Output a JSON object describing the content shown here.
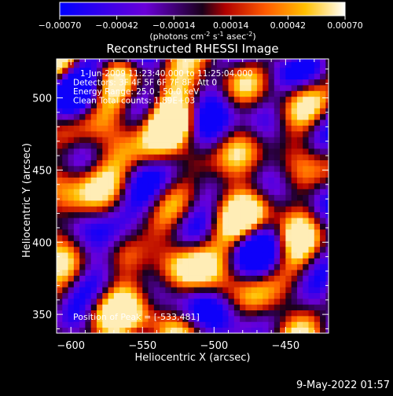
{
  "colorbar": {
    "ticks": [
      "-0.00070",
      "-0.00042",
      "-0.00014",
      "0.00014",
      "0.00042",
      "0.00070"
    ],
    "unit_parts": [
      "(photons cm",
      "-2",
      " s",
      "-1",
      " asec",
      "-2",
      ")"
    ],
    "range": [
      -0.0007,
      0.0007
    ],
    "colormap": [
      "#0000ff",
      "#6a00d8",
      "#1a001a",
      "#b00000",
      "#ff5a00",
      "#ffc000",
      "#ffffff"
    ]
  },
  "chart_data": {
    "type": "heatmap",
    "title": "Reconstructed RHESSI Image",
    "xlabel": "Heliocentric X (arcsec)",
    "ylabel": "Heliocentric Y (arcsec)",
    "xlim": [
      -610,
      -420
    ],
    "ylim": [
      337,
      527
    ],
    "x_ticks": [
      -600,
      -550,
      -500,
      -450
    ],
    "y_ticks": [
      350,
      400,
      450,
      500
    ],
    "x_tick_labels": [
      "−600",
      "−550",
      "−500",
      "−450"
    ],
    "y_tick_labels": [
      "350",
      "400",
      "450",
      "500"
    ],
    "annotations": [
      "1-Jun-2009 11:23:40.000 to 11:25:04.000",
      "Detectors: 3F 4F 5F 6F 7F 8F, Att 0",
      "Energy Range: 25.0 - 50.0 keV",
      "Clean    Total counts: 1.89E+03"
    ],
    "peak_label": "Position of Peak = [-533,481]",
    "peak_position": [
      -533,
      481
    ],
    "total_counts": 1890,
    "energy_range_kev": [
      25.0,
      50.0
    ]
  },
  "timestamp": "9-May-2022 01:57"
}
